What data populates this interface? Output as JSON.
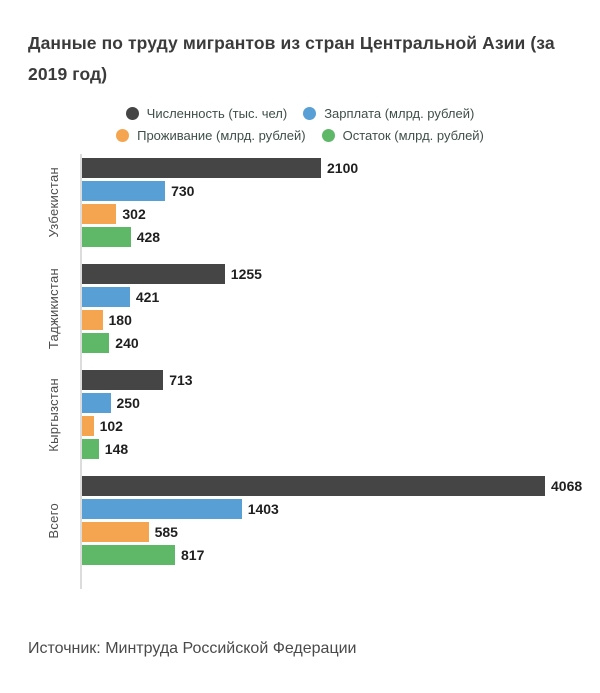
{
  "title_lines": [
    "Данные по труду мигрантов из стран Центральной Азии (за",
    "2019 год)"
  ],
  "source_text": "Источник: Минтруда Российской Федерации",
  "colors": {
    "title_text": "#3b3b3b",
    "legend_text": "#3f4f4a",
    "value_label_text": "#1f1f1f",
    "category_label_text": "#4d4d4d",
    "axis_line": "#dcdcdc",
    "background": "#ffffff"
  },
  "chart_data": {
    "type": "bar",
    "orientation": "horizontal",
    "title": "Данные по труду мигрантов из стран Центральной Азии (за 2019 год)",
    "categories": [
      "Узбекистан",
      "Таджикистан",
      "Кыргызстан",
      "Всего"
    ],
    "series": [
      {
        "name": "Численность (тыс. чел)",
        "color": "#454545",
        "values": [
          2100,
          1255,
          713,
          4068
        ]
      },
      {
        "name": "Зарплата (млрд. рублей)",
        "color": "#589fd6",
        "values": [
          730,
          421,
          250,
          1403
        ]
      },
      {
        "name": "Проживание (млрд. рублей)",
        "color": "#f5a54f",
        "values": [
          302,
          180,
          102,
          585
        ]
      },
      {
        "name": "Остаток (млрд. рублей)",
        "color": "#5fb868",
        "values": [
          428,
          240,
          148,
          817
        ]
      }
    ],
    "value_labels": true,
    "xlim": [
      0,
      4068
    ],
    "grid": false,
    "legend_position": "top",
    "source": "Источник: Минтруда Российской Федерации"
  }
}
